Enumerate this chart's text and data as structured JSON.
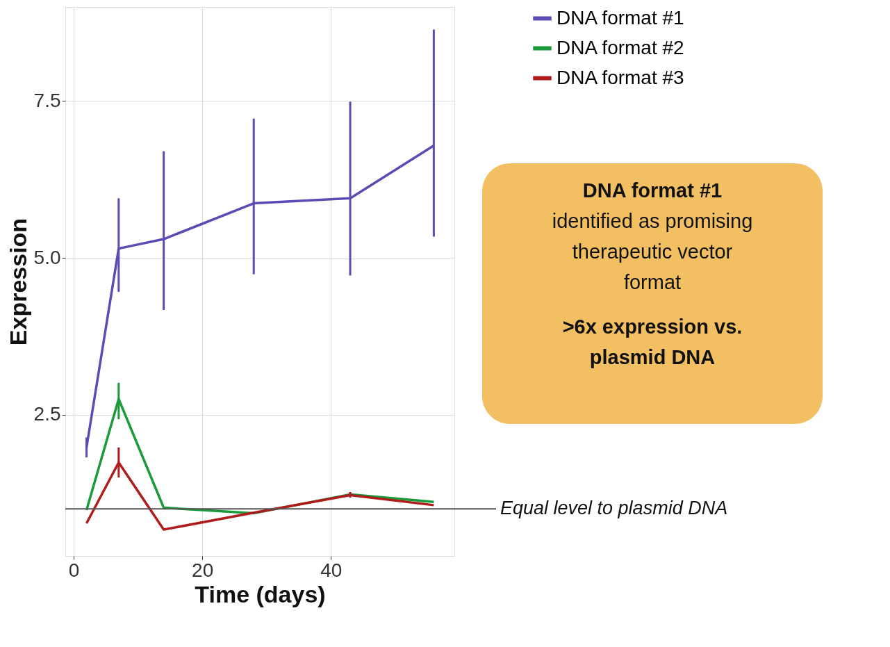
{
  "chart_data": {
    "type": "line",
    "xlabel": "Time (days)",
    "ylabel": "Expression",
    "x": [
      2,
      7,
      14,
      28,
      43,
      56
    ],
    "series": [
      {
        "name": "DNA format #1",
        "color": "#5b4bb4",
        "values": [
          1.98,
          5.15,
          5.3,
          5.87,
          5.95,
          6.79
        ],
        "errors": [
          [
            1.82,
            2.14
          ],
          [
            4.46,
            5.95
          ],
          [
            4.17,
            6.7
          ],
          [
            4.74,
            7.22
          ],
          [
            4.72,
            7.49
          ],
          [
            5.34,
            8.64
          ]
        ]
      },
      {
        "name": "DNA format #2",
        "color": "#1a9a3a",
        "values": [
          0.98,
          2.75,
          1.02,
          0.93,
          1.23,
          1.11
        ],
        "errors": [
          null,
          [
            2.43,
            3.01
          ],
          null,
          null,
          null,
          null
        ]
      },
      {
        "name": "DNA format #3",
        "color": "#b01c1c",
        "values": [
          0.77,
          1.74,
          0.67,
          0.94,
          1.22,
          1.06
        ],
        "errors": [
          null,
          [
            1.5,
            1.98
          ],
          null,
          null,
          [
            1.18,
            1.27
          ],
          null
        ]
      }
    ],
    "xlim": [
      -1.3,
      59.2
    ],
    "ylim": [
      0.25,
      9.0
    ],
    "xticks": [
      0,
      20,
      40
    ],
    "yticks": [
      {
        "value": 2.5,
        "label": "2.5"
      },
      {
        "value": 5,
        "label": "5.0"
      },
      {
        "value": 7.5,
        "label": "7.5"
      }
    ],
    "grid": true,
    "legend": "top right",
    "ref_lines": [
      {
        "axis": "y",
        "value": 1,
        "label": "Equal level to plasmid DNA",
        "color": "#555555"
      }
    ],
    "annotations": [
      "DNA format #1\nidentified as promising\ntherapeutic vector\nformat",
      ">6x expression vs.\nplasmid DNA"
    ]
  }
}
